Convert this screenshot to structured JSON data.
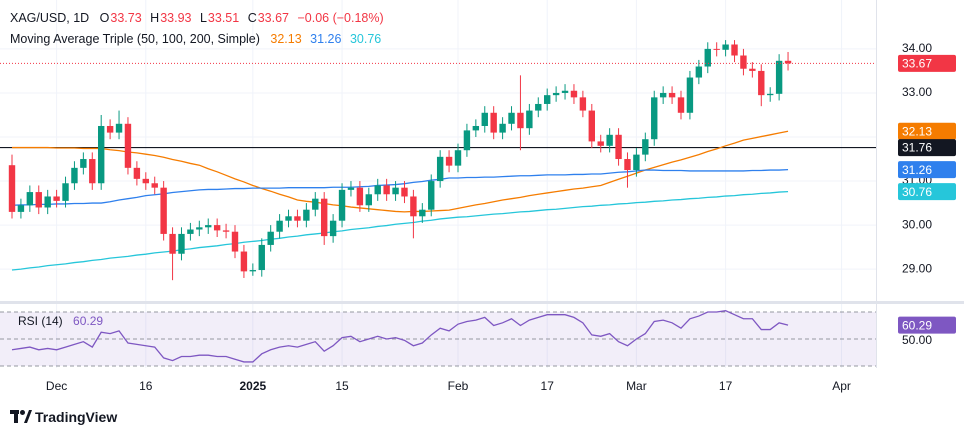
{
  "header": {
    "symbol": "XAG/USD, 1D",
    "o": "O",
    "h": "H",
    "l": "L",
    "c": "C",
    "change": "−0.06 (−0.18%)",
    "indicator": "Moving Average Triple (50, 100, 200, Simple)"
  },
  "chart_data": [
    {
      "type": "candlestick",
      "categories": [
        null,
        null,
        null,
        null,
        null,
        "Dec",
        null,
        null,
        null,
        null,
        null,
        null,
        null,
        null,
        null,
        "16",
        null,
        null,
        null,
        null,
        null,
        null,
        null,
        null,
        null,
        null,
        null,
        "2025",
        null,
        null,
        null,
        null,
        null,
        null,
        null,
        null,
        null,
        "15",
        null,
        null,
        null,
        null,
        null,
        null,
        null,
        null,
        null,
        null,
        null,
        null,
        "Feb",
        null,
        null,
        null,
        null,
        null,
        null,
        null,
        null,
        null,
        "17",
        null,
        null,
        null,
        null,
        null,
        null,
        null,
        null,
        null,
        "Mar",
        null,
        null,
        null,
        null,
        null,
        null,
        null,
        null,
        null,
        "17",
        null,
        null,
        null,
        null,
        null,
        null,
        null,
        null,
        null,
        null,
        null,
        null,
        "Apr"
      ],
      "open": [
        31.36,
        30.3,
        30.45,
        30.75,
        30.4,
        30.65,
        30.55,
        30.95,
        31.3,
        31.5,
        30.95,
        32.25,
        32.1,
        32.3,
        31.3,
        31.05,
        30.95,
        30.85,
        29.8,
        29.35,
        29.8,
        29.9,
        29.95,
        30.0,
        29.88,
        29.85,
        29.4,
        28.95,
        28.98,
        29.55,
        29.85,
        30.1,
        30.2,
        30.1,
        30.35,
        30.6,
        29.75,
        30.1,
        30.8,
        30.85,
        30.45,
        30.7,
        30.9,
        30.7,
        30.85,
        30.65,
        30.2,
        30.35,
        31.0,
        31.55,
        31.35,
        31.7,
        32.15,
        32.25,
        32.55,
        32.1,
        32.3,
        32.55,
        32.2,
        32.6,
        32.75,
        32.95,
        33.0,
        33.05,
        32.9,
        32.6,
        31.9,
        31.8,
        32.05,
        31.5,
        31.25,
        31.6,
        31.95,
        32.9,
        33.0,
        32.9,
        32.55,
        33.35,
        33.6,
        34.0,
        33.98,
        34.1,
        33.85,
        33.55,
        33.5,
        32.95,
        32.98,
        33.73,
        null,
        null,
        null,
        null,
        null,
        null
      ],
      "high": [
        31.6,
        30.6,
        30.9,
        30.9,
        30.8,
        30.8,
        31.1,
        31.45,
        31.65,
        31.65,
        32.5,
        32.4,
        32.6,
        32.45,
        31.45,
        31.2,
        31.1,
        31.0,
        29.95,
        29.95,
        30.05,
        30.1,
        30.15,
        30.15,
        30.03,
        30.0,
        29.55,
        29.13,
        29.7,
        30.0,
        30.25,
        30.35,
        30.35,
        30.5,
        30.75,
        30.75,
        30.25,
        30.95,
        31.0,
        31.0,
        30.85,
        31.05,
        31.05,
        31.0,
        31.0,
        30.8,
        30.5,
        31.15,
        31.7,
        31.7,
        31.85,
        32.3,
        32.4,
        32.7,
        32.7,
        32.45,
        32.7,
        33.4,
        32.75,
        32.9,
        33.1,
        33.15,
        33.2,
        33.2,
        33.05,
        32.75,
        32.05,
        32.2,
        32.2,
        31.65,
        31.75,
        32.1,
        33.05,
        33.15,
        33.15,
        33.05,
        33.5,
        33.75,
        34.15,
        34.15,
        34.2,
        34.2,
        34.0,
        33.7,
        33.65,
        33.13,
        33.88,
        33.93,
        null,
        null,
        null,
        null,
        null,
        null
      ],
      "low": [
        30.15,
        30.15,
        30.3,
        30.25,
        30.25,
        30.4,
        30.4,
        30.8,
        31.15,
        30.8,
        30.8,
        31.95,
        31.95,
        31.15,
        30.9,
        30.8,
        30.7,
        29.65,
        28.75,
        29.2,
        29.65,
        29.75,
        29.8,
        29.73,
        29.7,
        29.25,
        28.8,
        28.85,
        28.83,
        29.4,
        29.7,
        29.95,
        29.95,
        29.95,
        30.2,
        29.55,
        29.6,
        29.95,
        30.65,
        30.3,
        30.3,
        30.55,
        30.55,
        30.55,
        30.5,
        29.7,
        30.05,
        30.2,
        30.85,
        31.2,
        31.2,
        31.55,
        32.0,
        32.1,
        31.95,
        31.95,
        32.15,
        31.7,
        32.05,
        32.45,
        32.6,
        32.8,
        32.85,
        32.75,
        32.45,
        31.75,
        31.65,
        31.65,
        31.35,
        30.85,
        31.1,
        31.45,
        31.8,
        32.75,
        32.75,
        32.4,
        32.4,
        33.2,
        33.45,
        33.83,
        33.83,
        33.7,
        33.4,
        33.35,
        32.7,
        32.8,
        32.83,
        33.51,
        null,
        null,
        null,
        null,
        null,
        null
      ],
      "close": [
        30.3,
        30.45,
        30.75,
        30.4,
        30.65,
        30.55,
        30.95,
        31.3,
        31.5,
        30.95,
        32.25,
        32.1,
        32.3,
        31.3,
        31.05,
        30.95,
        30.85,
        29.8,
        29.35,
        29.8,
        29.9,
        29.95,
        30.0,
        29.88,
        29.85,
        29.4,
        28.95,
        28.98,
        29.55,
        29.85,
        30.1,
        30.2,
        30.1,
        30.35,
        30.6,
        29.75,
        30.1,
        30.8,
        30.85,
        30.45,
        30.7,
        30.9,
        30.7,
        30.85,
        30.65,
        30.2,
        30.35,
        31.0,
        31.55,
        31.35,
        31.7,
        32.15,
        32.25,
        32.55,
        32.1,
        32.3,
        32.55,
        32.2,
        32.6,
        32.75,
        32.95,
        33.0,
        33.05,
        32.9,
        32.6,
        31.9,
        31.8,
        32.05,
        31.5,
        31.25,
        31.6,
        31.95,
        32.9,
        33.0,
        32.9,
        32.55,
        33.35,
        33.6,
        34.0,
        33.98,
        34.1,
        33.85,
        33.55,
        33.5,
        32.95,
        32.98,
        33.73,
        33.67,
        null,
        null,
        null,
        null,
        null,
        null
      ],
      "up_color": "#089981",
      "down_color": "#f23645",
      "series": [
        {
          "color": "#f57c00",
          "values": [
            31.76,
            31.76,
            31.76,
            31.76,
            31.76,
            31.75,
            31.75,
            31.75,
            31.74,
            31.74,
            31.74,
            31.71,
            31.69,
            31.66,
            31.64,
            31.61,
            31.58,
            31.54,
            31.49,
            31.45,
            31.4,
            31.36,
            31.28,
            31.21,
            31.13,
            31.05,
            30.98,
            30.9,
            30.83,
            30.77,
            30.7,
            30.64,
            30.57,
            30.54,
            30.52,
            30.49,
            30.46,
            30.44,
            30.41,
            30.39,
            30.37,
            30.35,
            30.33,
            30.31,
            30.3,
            30.31,
            30.31,
            30.32,
            30.33,
            30.34,
            30.38,
            30.42,
            30.46,
            30.49,
            30.53,
            30.57,
            30.6,
            30.63,
            30.67,
            30.7,
            30.73,
            30.76,
            30.79,
            30.82,
            30.84,
            30.87,
            30.9,
            30.97,
            31.04,
            31.11,
            31.18,
            31.25,
            31.31,
            31.37,
            31.43,
            31.48,
            31.54,
            31.6,
            31.67,
            31.73,
            31.8,
            31.86,
            31.93,
            31.97,
            32.01,
            32.05,
            32.09,
            32.13,
            null,
            null,
            null,
            null,
            null,
            null
          ]
        },
        {
          "color": "#2f80ed",
          "values": [
            30.45,
            30.46,
            30.46,
            30.47,
            30.47,
            30.48,
            30.48,
            30.49,
            30.49,
            30.5,
            30.5,
            30.53,
            30.57,
            30.6,
            30.63,
            30.67,
            30.69,
            30.71,
            30.74,
            30.76,
            30.78,
            30.8,
            30.81,
            30.81,
            30.82,
            30.83,
            30.83,
            30.84,
            30.84,
            30.84,
            30.84,
            30.85,
            30.85,
            30.85,
            30.85,
            30.85,
            30.86,
            30.86,
            30.86,
            30.87,
            30.88,
            30.9,
            30.91,
            30.92,
            30.94,
            30.97,
            30.99,
            31.02,
            31.04,
            31.07,
            31.07,
            31.08,
            31.08,
            31.09,
            31.09,
            31.1,
            31.11,
            31.12,
            31.12,
            31.13,
            31.14,
            31.14,
            31.14,
            31.15,
            31.15,
            31.16,
            31.16,
            31.18,
            31.2,
            31.21,
            31.23,
            31.25,
            31.25,
            31.24,
            31.24,
            31.24,
            31.23,
            31.23,
            31.23,
            31.23,
            31.23,
            31.23,
            31.23,
            31.24,
            31.24,
            31.25,
            31.25,
            31.26,
            null,
            null,
            null,
            null,
            null,
            null
          ]
        },
        {
          "color": "#26c6da",
          "values": [
            28.98,
            29.0,
            29.03,
            29.05,
            29.08,
            29.1,
            29.12,
            29.15,
            29.17,
            29.2,
            29.22,
            29.25,
            29.27,
            29.29,
            29.32,
            29.34,
            29.37,
            29.39,
            29.41,
            29.44,
            29.46,
            29.49,
            29.51,
            29.53,
            29.56,
            29.58,
            29.61,
            29.63,
            29.65,
            29.68,
            29.7,
            29.73,
            29.75,
            29.78,
            29.8,
            29.82,
            29.85,
            29.87,
            29.9,
            29.92,
            29.94,
            29.97,
            29.99,
            30.02,
            30.04,
            30.06,
            30.09,
            30.11,
            30.14,
            30.16,
            30.18,
            30.19,
            30.21,
            30.23,
            30.25,
            30.26,
            30.28,
            30.3,
            30.31,
            30.33,
            30.35,
            30.36,
            30.38,
            30.4,
            30.42,
            30.43,
            30.45,
            30.46,
            30.48,
            30.49,
            30.51,
            30.52,
            30.54,
            30.55,
            30.57,
            30.58,
            30.6,
            30.61,
            30.63,
            30.64,
            30.66,
            30.67,
            30.69,
            30.7,
            30.72,
            30.73,
            30.75,
            30.76,
            null,
            null,
            null,
            null,
            null,
            null
          ]
        }
      ],
      "hline": 31.76,
      "hline_color": "#131722",
      "ylim": [
        28.3,
        35.11
      ],
      "yticks": [
        {
          "value": 29,
          "label": "29.00"
        },
        {
          "value": 30,
          "label": "30.00"
        },
        {
          "value": 31,
          "label": "31.00"
        },
        {
          "value": 32,
          "label": "32.00"
        },
        {
          "value": 33,
          "label": "33.00"
        },
        {
          "value": 34,
          "label": "34.00"
        }
      ],
      "grid": true
    },
    {
      "type": "line",
      "title": "RSI (14)",
      "series": [
        {
          "color": "#7e57c2",
          "values": [
            42,
            43,
            44,
            42,
            43,
            42,
            44,
            46,
            48,
            44,
            55,
            54,
            56,
            47,
            46,
            45,
            44,
            36,
            34,
            37,
            37,
            38,
            38,
            37,
            37,
            35,
            33,
            33,
            39,
            42,
            44,
            45,
            44,
            46,
            48,
            41,
            45,
            51,
            52,
            48,
            50,
            52,
            50,
            51,
            49,
            45,
            47,
            53,
            58,
            56,
            61,
            63,
            64,
            66,
            60,
            62,
            65,
            60,
            64,
            66,
            68,
            68,
            68,
            66,
            62,
            53,
            52,
            54,
            48,
            45,
            50,
            54,
            63,
            64,
            62,
            58,
            65,
            67,
            70,
            70,
            71,
            68,
            65,
            65,
            57,
            57,
            62,
            60.29
          ]
        }
      ],
      "band": [
        30,
        70
      ],
      "ylim": [
        28.5,
        75.2
      ],
      "yticks": [
        {
          "value": 50,
          "label": "50.00"
        }
      ]
    }
  ],
  "footer": {
    "brand": "TradingView"
  }
}
